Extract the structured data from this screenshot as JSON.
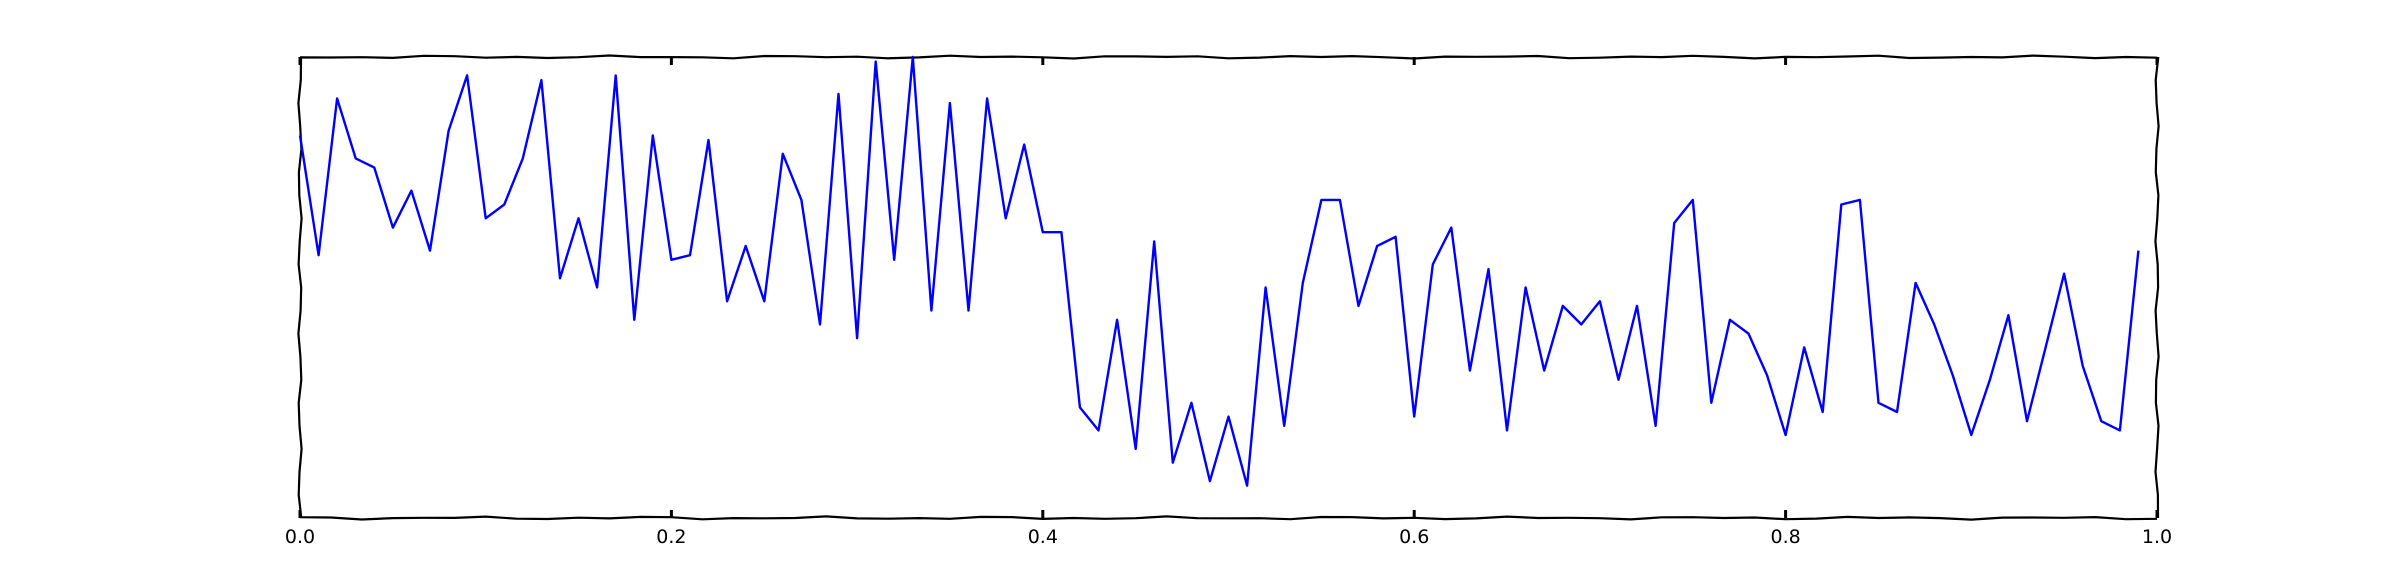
{
  "chart_data": {
    "type": "line",
    "style": "xkcd sketch",
    "title": "",
    "xlabel": "",
    "ylabel": "",
    "xlim": [
      0.0,
      1.0
    ],
    "ylim": [
      0.0,
      1.0
    ],
    "xticks": [
      0.0,
      0.2,
      0.4,
      0.6,
      0.8,
      1.0
    ],
    "xtick_labels": [
      "0.0",
      "0.2",
      "0.4",
      "0.6",
      "0.8",
      "1.0"
    ],
    "yticks": [],
    "grid": false,
    "legend": "none",
    "series": [
      {
        "color": "#0000ff",
        "x": [
          0.0,
          0.01,
          0.02,
          0.03,
          0.04,
          0.05,
          0.06,
          0.07,
          0.08,
          0.09,
          0.1,
          0.11,
          0.12,
          0.13,
          0.14,
          0.15,
          0.16,
          0.17,
          0.18,
          0.19,
          0.2,
          0.21,
          0.22,
          0.23,
          0.24,
          0.25,
          0.26,
          0.27,
          0.28,
          0.29,
          0.3,
          0.31,
          0.32,
          0.33,
          0.34,
          0.35,
          0.36,
          0.37,
          0.38,
          0.39,
          0.4,
          0.41,
          0.42,
          0.43,
          0.44,
          0.45,
          0.46,
          0.47,
          0.48,
          0.49,
          0.5,
          0.51,
          0.52,
          0.53,
          0.54,
          0.55,
          0.56,
          0.57,
          0.58,
          0.59,
          0.6,
          0.61,
          0.62,
          0.63,
          0.64,
          0.65,
          0.66,
          0.67,
          0.68,
          0.69,
          0.7,
          0.71,
          0.72,
          0.73,
          0.74,
          0.75,
          0.76,
          0.77,
          0.78,
          0.79,
          0.8,
          0.81,
          0.82,
          0.83,
          0.84,
          0.85,
          0.86,
          0.87,
          0.88,
          0.89,
          0.9,
          0.91,
          0.92,
          0.93,
          0.94,
          0.95,
          0.96,
          0.97,
          0.98,
          0.99
        ],
        "y": [
          0.83,
          0.57,
          0.91,
          0.78,
          0.76,
          0.63,
          0.71,
          0.58,
          0.84,
          0.96,
          0.65,
          0.68,
          0.78,
          0.95,
          0.52,
          0.65,
          0.5,
          0.96,
          0.43,
          0.83,
          0.56,
          0.57,
          0.82,
          0.47,
          0.59,
          0.47,
          0.79,
          0.69,
          0.42,
          0.92,
          0.39,
          0.99,
          0.56,
          1.0,
          0.45,
          0.9,
          0.45,
          0.91,
          0.65,
          0.81,
          0.62,
          0.62,
          0.24,
          0.19,
          0.43,
          0.15,
          0.6,
          0.12,
          0.25,
          0.08,
          0.22,
          0.07,
          0.5,
          0.2,
          0.51,
          0.69,
          0.69,
          0.46,
          0.59,
          0.61,
          0.22,
          0.55,
          0.63,
          0.32,
          0.54,
          0.19,
          0.5,
          0.32,
          0.46,
          0.42,
          0.47,
          0.3,
          0.46,
          0.2,
          0.64,
          0.69,
          0.25,
          0.43,
          0.4,
          0.31,
          0.18,
          0.37,
          0.23,
          0.68,
          0.69,
          0.25,
          0.23,
          0.51,
          0.42,
          0.31,
          0.18,
          0.3,
          0.44,
          0.21,
          0.37,
          0.53,
          0.33,
          0.21,
          0.19,
          0.58
        ]
      }
    ]
  },
  "colors": {
    "line": "#0000ff",
    "axes": "#000000",
    "background": "#ffffff"
  }
}
